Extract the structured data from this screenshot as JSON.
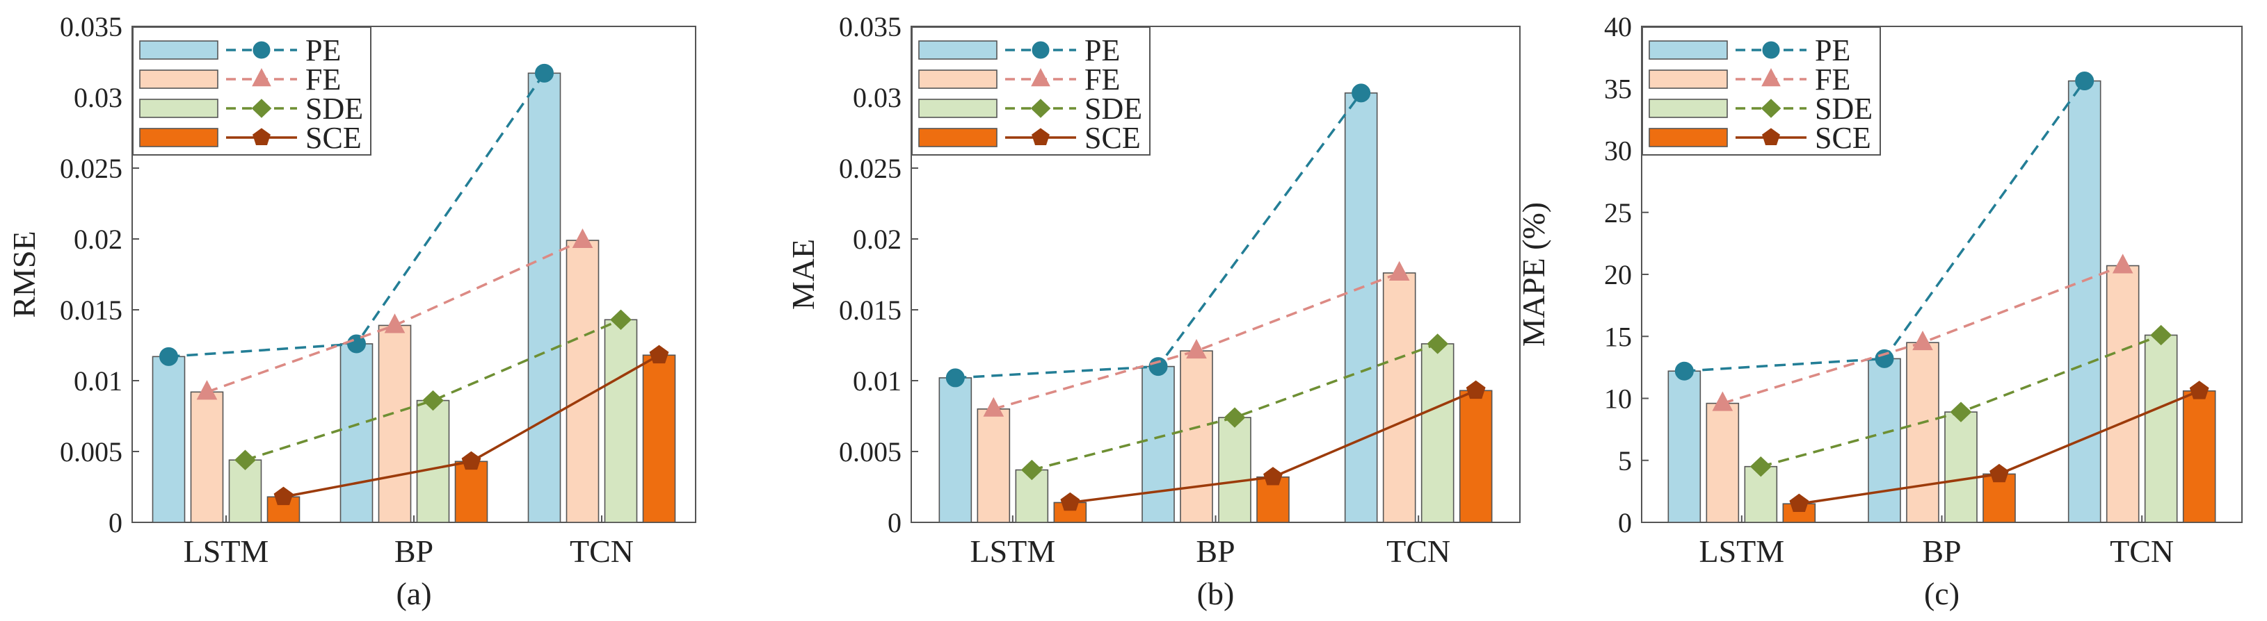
{
  "colors": {
    "PE_bar": "#add8e6",
    "PE_line": "#237e96",
    "FE_bar": "#fcd5bb",
    "FE_line": "#dc8a84",
    "SDE_bar": "#d5e6c1",
    "SDE_line": "#6e8f33",
    "SCE_bar": "#ee6e10",
    "SCE_line": "#9c3b0b"
  },
  "chart_data": [
    {
      "type": "bar",
      "caption": "(a)",
      "ylabel": "RMSE",
      "xlabel": "",
      "ylim": [
        0,
        0.035
      ],
      "yticks": [
        0,
        0.005,
        0.01,
        0.015,
        0.02,
        0.025,
        0.03,
        0.035
      ],
      "ytick_labels": [
        "0",
        "0.005",
        "0.01",
        "0.015",
        "0.02",
        "0.025",
        "0.03",
        "0.035"
      ],
      "categories": [
        "LSTM",
        "BP",
        "TCN"
      ],
      "legend": {
        "position": "top-left",
        "entries": [
          "PE",
          "FE",
          "SDE",
          "SCE"
        ]
      },
      "series": [
        {
          "name": "PE",
          "marker": "circle",
          "linestyle": "dashed",
          "values": [
            0.0117,
            0.0126,
            0.0317
          ]
        },
        {
          "name": "FE",
          "marker": "triangle",
          "linestyle": "dashed",
          "values": [
            0.0092,
            0.0139,
            0.0199
          ]
        },
        {
          "name": "SDE",
          "marker": "diamond",
          "linestyle": "dashed",
          "values": [
            0.0044,
            0.0086,
            0.0143
          ]
        },
        {
          "name": "SCE",
          "marker": "pentagon",
          "linestyle": "solid",
          "values": [
            0.0018,
            0.0043,
            0.0118
          ]
        }
      ]
    },
    {
      "type": "bar",
      "caption": "(b)",
      "ylabel": "MAE",
      "xlabel": "",
      "ylim": [
        0,
        0.035
      ],
      "yticks": [
        0,
        0.005,
        0.01,
        0.015,
        0.02,
        0.025,
        0.03,
        0.035
      ],
      "ytick_labels": [
        "0",
        "0.005",
        "0.01",
        "0.015",
        "0.02",
        "0.025",
        "0.03",
        "0.035"
      ],
      "categories": [
        "LSTM",
        "BP",
        "TCN"
      ],
      "legend": {
        "position": "top-left",
        "entries": [
          "PE",
          "FE",
          "SDE",
          "SCE"
        ]
      },
      "series": [
        {
          "name": "PE",
          "marker": "circle",
          "linestyle": "dashed",
          "values": [
            0.0102,
            0.011,
            0.0303
          ]
        },
        {
          "name": "FE",
          "marker": "triangle",
          "linestyle": "dashed",
          "values": [
            0.008,
            0.0121,
            0.0176
          ]
        },
        {
          "name": "SDE",
          "marker": "diamond",
          "linestyle": "dashed",
          "values": [
            0.0037,
            0.0074,
            0.0126
          ]
        },
        {
          "name": "SCE",
          "marker": "pentagon",
          "linestyle": "solid",
          "values": [
            0.0014,
            0.0032,
            0.0093
          ]
        }
      ]
    },
    {
      "type": "bar",
      "caption": "(c)",
      "ylabel": "MAPE (%)",
      "xlabel": "",
      "ylim": [
        0,
        40
      ],
      "yticks": [
        0,
        5,
        10,
        15,
        20,
        25,
        30,
        35,
        40
      ],
      "ytick_labels": [
        "0",
        "5",
        "10",
        "15",
        "20",
        "25",
        "30",
        "35",
        "40"
      ],
      "categories": [
        "LSTM",
        "BP",
        "TCN"
      ],
      "legend": {
        "position": "top-left",
        "entries": [
          "PE",
          "FE",
          "SDE",
          "SCE"
        ]
      },
      "series": [
        {
          "name": "PE",
          "marker": "circle",
          "linestyle": "dashed",
          "values": [
            12.2,
            13.2,
            35.6
          ]
        },
        {
          "name": "FE",
          "marker": "triangle",
          "linestyle": "dashed",
          "values": [
            9.6,
            14.5,
            20.7
          ]
        },
        {
          "name": "SDE",
          "marker": "diamond",
          "linestyle": "dashed",
          "values": [
            4.5,
            8.9,
            15.1
          ]
        },
        {
          "name": "SCE",
          "marker": "pentagon",
          "linestyle": "solid",
          "values": [
            1.5,
            3.9,
            10.6
          ]
        }
      ]
    }
  ]
}
